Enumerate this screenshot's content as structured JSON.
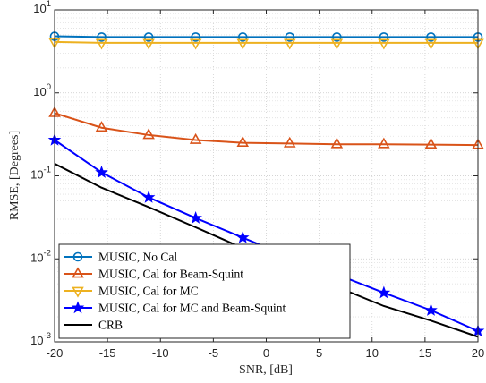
{
  "chart_data": {
    "type": "line",
    "title": "",
    "xlabel": "SNR, [dB]",
    "ylabel": "RMSE, [Degrees]",
    "xlim": [
      -20,
      20
    ],
    "ylim": [
      0.001,
      10
    ],
    "yscale": "log",
    "grid": true,
    "minor_grid": true,
    "legend_position": "bottom-left",
    "x_ticks": [
      -20,
      -15,
      -10,
      -5,
      0,
      5,
      10,
      15,
      20
    ],
    "x_tick_labels": [
      "-20",
      "-15",
      "-10",
      "-5",
      "0",
      "5",
      "10",
      "15",
      "20"
    ],
    "y_ticks": [
      0.001,
      0.01,
      0.1,
      1,
      10
    ],
    "y_tick_labels": [
      {
        "base": "10",
        "exp": "-3"
      },
      {
        "base": "10",
        "exp": "-2"
      },
      {
        "base": "10",
        "exp": "-1"
      },
      {
        "base": "10",
        "exp": "0"
      },
      {
        "base": "10",
        "exp": "1"
      }
    ],
    "x": [
      -20,
      -15.56,
      -11.11,
      -6.67,
      -2.22,
      2.22,
      6.67,
      11.11,
      15.56,
      20
    ],
    "series": [
      {
        "name": "MUSIC, No Cal",
        "color": "#0072BD",
        "marker": "circle",
        "values": [
          4.8,
          4.7,
          4.7,
          4.7,
          4.7,
          4.7,
          4.7,
          4.7,
          4.7,
          4.7
        ]
      },
      {
        "name": "MUSIC, Cal for Beam-Squint",
        "color": "#D95319",
        "marker": "triangle-up",
        "values": [
          0.57,
          0.38,
          0.31,
          0.27,
          0.25,
          0.245,
          0.24,
          0.24,
          0.238,
          0.235
        ]
      },
      {
        "name": "MUSIC, Cal for MC",
        "color": "#EDB120",
        "marker": "triangle-down",
        "values": [
          4.1,
          4.0,
          4.0,
          4.0,
          4.0,
          4.0,
          4.0,
          4.0,
          4.0,
          4.0
        ]
      },
      {
        "name": "MUSIC, Cal for MC and Beam-Squint",
        "color": "#0000FF",
        "marker": "star",
        "values": [
          0.27,
          0.11,
          0.055,
          0.031,
          0.018,
          0.0105,
          0.0065,
          0.0039,
          0.0024,
          0.00135
        ]
      },
      {
        "name": "CRB",
        "color": "#000000",
        "marker": "none",
        "values": [
          0.14,
          0.072,
          0.042,
          0.024,
          0.0135,
          0.0078,
          0.0046,
          0.0027,
          0.0018,
          0.00115
        ]
      }
    ]
  }
}
